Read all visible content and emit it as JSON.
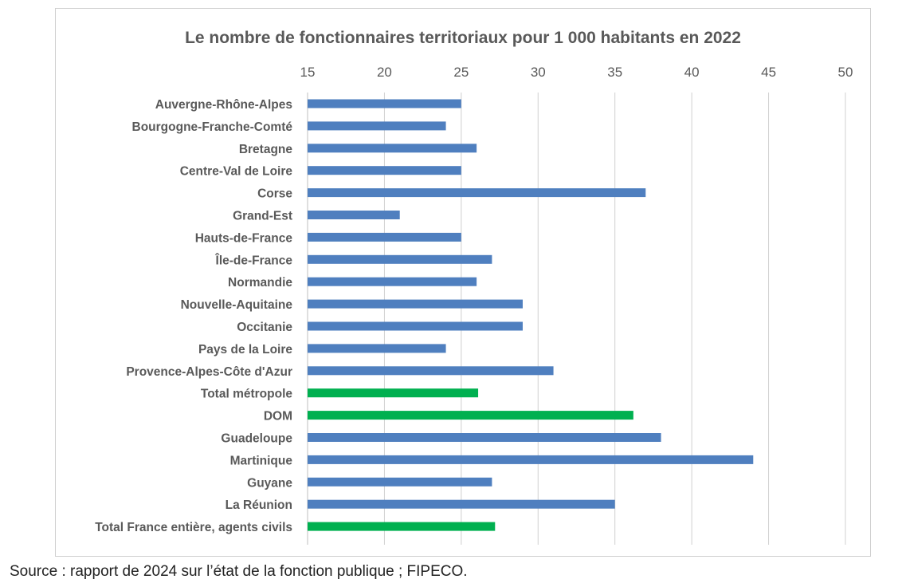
{
  "chart_data": {
    "type": "bar",
    "orientation": "horizontal",
    "title": "Le nombre de fonctionnaires territoriaux pour 1 000 habitants en 2022",
    "xlabel": "",
    "ylabel": "",
    "xlim": [
      15,
      50
    ],
    "ticks": [
      "15",
      "20",
      "25",
      "30",
      "35",
      "40",
      "45",
      "50"
    ],
    "grid": true,
    "legend": "none",
    "categories": [
      "Auvergne-Rhône-Alpes",
      "Bourgogne-Franche-Comté",
      "Bretagne",
      "Centre-Val de Loire",
      "Corse",
      "Grand-Est",
      "Hauts-de-France",
      "Île-de-France",
      "Normandie",
      "Nouvelle-Aquitaine",
      "Occitanie",
      "Pays de la Loire",
      "Provence-Alpes-Côte d'Azur",
      "Total métropole",
      "DOM",
      "Guadeloupe",
      "Martinique",
      "Guyane",
      "La Réunion",
      "Total France entière, agents civils"
    ],
    "values": [
      25,
      24,
      26,
      25,
      37,
      21,
      25,
      27,
      26,
      29,
      29,
      24,
      31,
      26.1,
      36.2,
      38,
      44,
      27,
      35,
      27.2
    ],
    "bar_colors": [
      "#4f7fbf",
      "#4f7fbf",
      "#4f7fbf",
      "#4f7fbf",
      "#4f7fbf",
      "#4f7fbf",
      "#4f7fbf",
      "#4f7fbf",
      "#4f7fbf",
      "#4f7fbf",
      "#4f7fbf",
      "#4f7fbf",
      "#4f7fbf",
      "#00b050",
      "#00b050",
      "#4f7fbf",
      "#4f7fbf",
      "#4f7fbf",
      "#4f7fbf",
      "#00b050"
    ]
  },
  "colors": {
    "bar_default": "#4f7fbf",
    "bar_highlight": "#00b050",
    "gridline": "#d0d0d0",
    "text": "#595959"
  },
  "source": "Source : rapport de 2024 sur l’état de la fonction publique ; FIPECO."
}
